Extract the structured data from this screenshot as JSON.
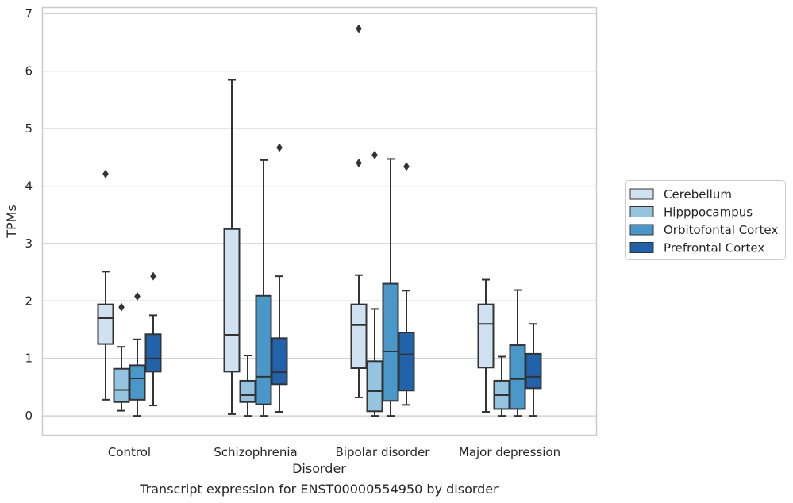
{
  "chart_data": {
    "type": "box",
    "xlabel": "Disorder",
    "ylabel": "TPMs",
    "caption": "Transcript expression for ENST00000554950 by disorder",
    "ylim": [
      -0.33,
      7.1
    ],
    "yticks": [
      0,
      1,
      2,
      3,
      4,
      5,
      6,
      7
    ],
    "grid": "horizontal",
    "legend_position": "right",
    "categories": [
      "Control",
      "Schizophrenia",
      "Bipolar disorder",
      "Major depression"
    ],
    "series": [
      {
        "name": "Cerebellum",
        "color": "#d0e1f2",
        "boxes": [
          {
            "whislo": 0.28,
            "q1": 1.25,
            "med": 1.7,
            "q3": 1.94,
            "whishi": 2.51,
            "fliers": [
              4.21
            ]
          },
          {
            "whislo": 0.03,
            "q1": 0.77,
            "med": 1.41,
            "q3": 3.25,
            "whishi": 5.85,
            "fliers": []
          },
          {
            "whislo": 0.32,
            "q1": 0.83,
            "med": 1.58,
            "q3": 1.94,
            "whishi": 2.45,
            "fliers": [
              4.4,
              6.74
            ]
          },
          {
            "whislo": 0.07,
            "q1": 0.84,
            "med": 1.6,
            "q3": 1.94,
            "whishi": 2.37,
            "fliers": []
          }
        ]
      },
      {
        "name": "Hipppocampus",
        "color": "#94c4df",
        "boxes": [
          {
            "whislo": 0.09,
            "q1": 0.24,
            "med": 0.45,
            "q3": 0.82,
            "whishi": 1.2,
            "fliers": [
              1.89
            ]
          },
          {
            "whislo": 0.0,
            "q1": 0.24,
            "med": 0.36,
            "q3": 0.61,
            "whishi": 1.05,
            "fliers": []
          },
          {
            "whislo": 0.0,
            "q1": 0.08,
            "med": 0.43,
            "q3": 0.95,
            "whishi": 1.86,
            "fliers": [
              4.54
            ]
          },
          {
            "whislo": 0.0,
            "q1": 0.12,
            "med": 0.36,
            "q3": 0.61,
            "whishi": 1.03,
            "fliers": []
          }
        ]
      },
      {
        "name": "Orbitofontal Cortex",
        "color": "#4a98c9",
        "boxes": [
          {
            "whislo": 0.0,
            "q1": 0.28,
            "med": 0.65,
            "q3": 0.88,
            "whishi": 1.33,
            "fliers": [
              2.08
            ]
          },
          {
            "whislo": 0.0,
            "q1": 0.2,
            "med": 0.68,
            "q3": 2.09,
            "whishi": 4.45,
            "fliers": []
          },
          {
            "whislo": 0.0,
            "q1": 0.26,
            "med": 1.12,
            "q3": 2.3,
            "whishi": 4.47,
            "fliers": []
          },
          {
            "whislo": 0.0,
            "q1": 0.12,
            "med": 0.64,
            "q3": 1.23,
            "whishi": 2.19,
            "fliers": []
          }
        ]
      },
      {
        "name": "Prefrontal Cortex",
        "color": "#2163aa",
        "boxes": [
          {
            "whislo": 0.18,
            "q1": 0.77,
            "med": 1.0,
            "q3": 1.42,
            "whishi": 1.75,
            "fliers": [
              2.43
            ]
          },
          {
            "whislo": 0.07,
            "q1": 0.55,
            "med": 0.76,
            "q3": 1.35,
            "whishi": 2.43,
            "fliers": [
              4.67
            ]
          },
          {
            "whislo": 0.19,
            "q1": 0.44,
            "med": 1.07,
            "q3": 1.45,
            "whishi": 2.18,
            "fliers": [
              4.34
            ]
          },
          {
            "whislo": 0.0,
            "q1": 0.48,
            "med": 0.68,
            "q3": 1.08,
            "whishi": 1.6,
            "fliers": []
          }
        ]
      }
    ]
  }
}
